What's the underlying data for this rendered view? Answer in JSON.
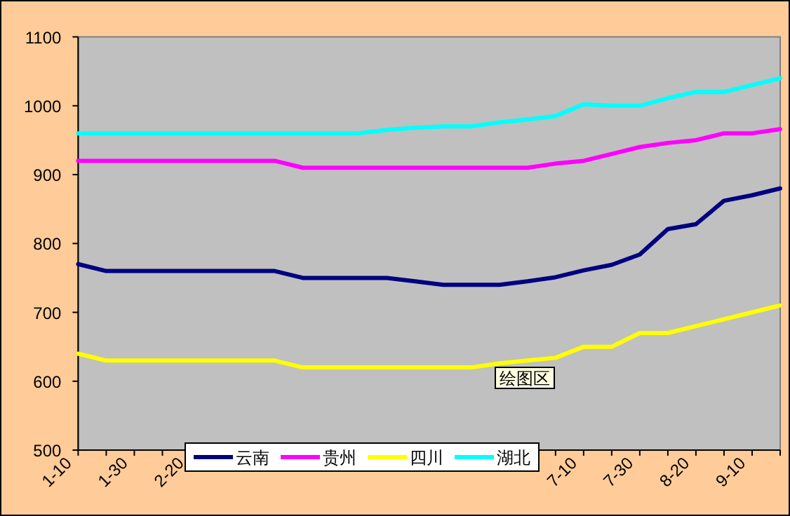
{
  "chart_data": {
    "type": "line",
    "categories": [
      "1-10",
      null,
      "1-30",
      null,
      "2-20",
      null,
      null,
      null,
      null,
      null,
      null,
      null,
      null,
      null,
      null,
      null,
      null,
      null,
      "7-10",
      null,
      "7-30",
      null,
      "8-20",
      null,
      "9-10",
      null
    ],
    "series": [
      {
        "name": "云南",
        "color": "#000080",
        "values": [
          770,
          760,
          760,
          760,
          760,
          760,
          760,
          760,
          750,
          750,
          750,
          750,
          745,
          740,
          740,
          740,
          745,
          751,
          761,
          769,
          784,
          821,
          828,
          862,
          870,
          880
        ]
      },
      {
        "name": "贵州",
        "color": "#ff00ff",
        "values": [
          920,
          920,
          920,
          920,
          920,
          920,
          920,
          920,
          910,
          910,
          910,
          910,
          910,
          910,
          910,
          910,
          910,
          916,
          920,
          930,
          940,
          946,
          950,
          960,
          960,
          966
        ]
      },
      {
        "name": "四川",
        "color": "#ffff00",
        "values": [
          640,
          630,
          630,
          630,
          630,
          630,
          630,
          630,
          620,
          620,
          620,
          620,
          620,
          620,
          620,
          626,
          630,
          634,
          650,
          650,
          670,
          670,
          680,
          690,
          700,
          710
        ]
      },
      {
        "name": "湖北",
        "color": "#00ffff",
        "values": [
          960,
          960,
          960,
          960,
          960,
          960,
          960,
          960,
          960,
          960,
          960,
          965,
          968,
          970,
          970,
          976,
          980,
          985,
          1002,
          1000,
          1000,
          1011,
          1020,
          1020,
          1030,
          1040
        ]
      }
    ],
    "ylim": [
      500,
      1100
    ],
    "yticks": [
      500,
      600,
      700,
      800,
      900,
      1000,
      1100
    ],
    "legend": "bottom",
    "annotations": [
      "绘图区"
    ]
  }
}
